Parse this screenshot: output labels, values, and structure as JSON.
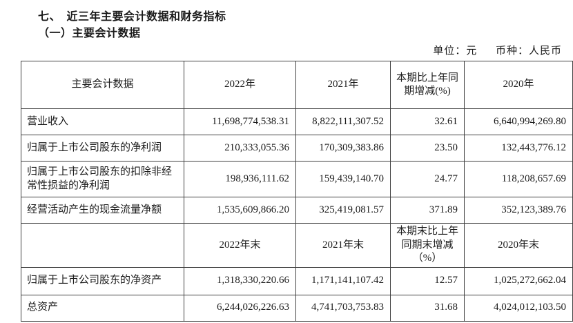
{
  "page": {
    "title": "七、　近三年主要会计数据和财务指标",
    "subtitle": "（一）主要会计数据",
    "unit_label": "单位：元",
    "currency_label": "币种：人民币"
  },
  "table": {
    "header_top": [
      "主要会计数据",
      "2022年",
      "2021年",
      "本期比上年同期增减(%)",
      "2020年"
    ],
    "rows_top": [
      {
        "label": "营业收入",
        "values": [
          "11,698,774,538.31",
          "8,822,111,307.52",
          "32.61",
          "6,640,994,269.80"
        ]
      },
      {
        "label": "归属于上市公司股东的净利润",
        "values": [
          "210,333,055.36",
          "170,309,383.86",
          "23.50",
          "132,443,776.12"
        ]
      },
      {
        "label": "归属于上市公司股东的扣除非经常性损益的净利润",
        "values": [
          "198,936,111.62",
          "159,439,140.70",
          "24.77",
          "118,208,657.69"
        ]
      },
      {
        "label": "经营活动产生的现金流量净额",
        "values": [
          "1,535,609,866.20",
          "325,419,081.57",
          "371.89",
          "352,123,389.76"
        ]
      }
    ],
    "header_mid": [
      "",
      "2022年末",
      "2021年末",
      "本期末比上年同期末增减（%）",
      "2020年末"
    ],
    "rows_bottom": [
      {
        "label": "归属于上市公司股东的净资产",
        "values": [
          "1,318,330,220.66",
          "1,171,141,107.42",
          "12.57",
          "1,025,272,662.04"
        ]
      },
      {
        "label": "总资产",
        "values": [
          "6,244,026,226.63",
          "4,741,703,753.83",
          "31.68",
          "4,024,012,103.50"
        ]
      }
    ]
  }
}
